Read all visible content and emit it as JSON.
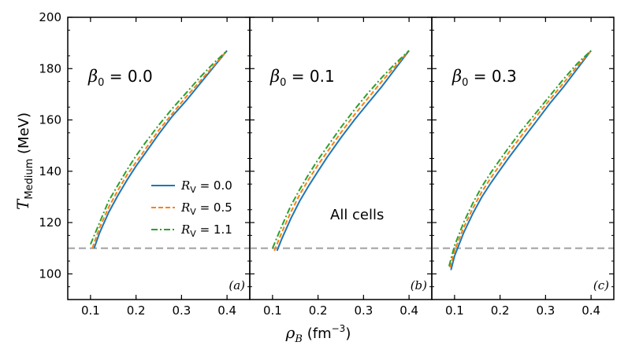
{
  "chart_data": {
    "type": "line",
    "ylabel_main": "T",
    "ylabel_sub": "Medium",
    "ylabel_unit": " (MeV)",
    "xlabel_main": "ρ",
    "xlabel_sub": "B",
    "xlabel_unit": " (fm",
    "xlabel_exp": "−3",
    "xlabel_close": ")",
    "ylim": [
      90,
      200
    ],
    "xlim": [
      0.05,
      0.45
    ],
    "yticks": [
      100,
      120,
      140,
      160,
      180,
      200
    ],
    "xticks": [
      0.1,
      0.2,
      0.3,
      0.4
    ],
    "xtick_labels": [
      "0.1",
      "0.2",
      "0.3",
      "0.4"
    ],
    "reference_line": {
      "y": 110,
      "color": "#aaaaaa"
    },
    "legend": {
      "label_prefix": "R",
      "label_sub": "V",
      "entries": [
        {
          "value": " = 0.0",
          "color": "#1f77b4",
          "dash": "solid"
        },
        {
          "value": " = 0.5",
          "color": "#ff7f0e",
          "dash": "dashed"
        },
        {
          "value": " = 1.1",
          "color": "#2ca02c",
          "dash": "dashdot"
        }
      ]
    },
    "annotation": "All cells",
    "panels": [
      {
        "beta_symbol": "β",
        "beta_sub": "0",
        "beta_value": " = 0.0",
        "panel_label": "(a)",
        "series": [
          {
            "name": "R_V = 0.0",
            "color": "#1f77b4",
            "dash": "solid",
            "x": [
              0.108,
              0.12,
              0.14,
              0.16,
              0.18,
              0.2,
              0.22,
              0.25,
              0.28,
              0.31,
              0.34,
              0.37,
              0.4
            ],
            "y": [
              110,
              116,
              124,
              130.5,
              136.5,
              142,
              147,
              154.5,
              161.5,
              167.5,
              174,
              180.5,
              187
            ]
          },
          {
            "name": "R_V = 0.5",
            "color": "#ff7f0e",
            "dash": "dashed",
            "x": [
              0.104,
              0.12,
              0.14,
              0.16,
              0.18,
              0.2,
              0.22,
              0.25,
              0.28,
              0.31,
              0.34,
              0.37,
              0.4
            ],
            "y": [
              110,
              118,
              126,
              132.5,
              138.5,
              143.5,
              148.5,
              156,
              162.5,
              169,
              175,
              181,
              187
            ]
          },
          {
            "name": "R_V = 1.1",
            "color": "#2ca02c",
            "dash": "dashdot",
            "x": [
              0.1,
              0.12,
              0.14,
              0.16,
              0.18,
              0.2,
              0.22,
              0.25,
              0.28,
              0.31,
              0.34,
              0.37,
              0.4
            ],
            "y": [
              111.5,
              120,
              128.5,
              134.5,
              140.5,
              146,
              151,
              158,
              164.5,
              170.5,
              176.5,
              182,
              187
            ]
          }
        ]
      },
      {
        "beta_symbol": "β",
        "beta_sub": "0",
        "beta_value": " = 0.1",
        "panel_label": "(b)",
        "series": [
          {
            "name": "R_V = 0.0",
            "color": "#1f77b4",
            "dash": "solid",
            "x": [
              0.11,
              0.12,
              0.14,
              0.16,
              0.18,
              0.2,
              0.22,
              0.25,
              0.28,
              0.31,
              0.34,
              0.37,
              0.4
            ],
            "y": [
              109,
              113.5,
              121.5,
              128.5,
              134.5,
              140,
              145.5,
              153,
              160,
              166.5,
              173,
              180,
              187
            ]
          },
          {
            "name": "R_V = 0.5",
            "color": "#ff7f0e",
            "dash": "dashed",
            "x": [
              0.104,
              0.12,
              0.14,
              0.16,
              0.18,
              0.2,
              0.22,
              0.25,
              0.28,
              0.31,
              0.34,
              0.37,
              0.4
            ],
            "y": [
              109,
              116,
              124,
              131,
              137,
              142.5,
              147.5,
              155,
              162,
              168.5,
              175,
              181,
              187
            ]
          },
          {
            "name": "R_V = 1.1",
            "color": "#2ca02c",
            "dash": "dashdot",
            "x": [
              0.1,
              0.12,
              0.14,
              0.16,
              0.18,
              0.2,
              0.22,
              0.25,
              0.28,
              0.31,
              0.34,
              0.37,
              0.4
            ],
            "y": [
              110,
              118.5,
              126.5,
              133,
              139,
              144.5,
              149.5,
              157,
              164,
              170.5,
              176.5,
              182,
              187
            ]
          }
        ]
      },
      {
        "beta_symbol": "β",
        "beta_sub": "0",
        "beta_value": " = 0.3",
        "panel_label": "(c)",
        "series": [
          {
            "name": "R_V = 0.0",
            "color": "#1f77b4",
            "dash": "solid",
            "x": [
              0.092,
              0.1,
              0.12,
              0.14,
              0.16,
              0.18,
              0.2,
              0.22,
              0.25,
              0.28,
              0.31,
              0.34,
              0.37,
              0.4
            ],
            "y": [
              101.5,
              107,
              116,
              123.5,
              130,
              135.5,
              140.5,
              145.5,
              152.5,
              159.5,
              166.5,
              173,
              180,
              187
            ]
          },
          {
            "name": "R_V = 0.5",
            "color": "#ff7f0e",
            "dash": "dashed",
            "x": [
              0.09,
              0.1,
              0.12,
              0.14,
              0.16,
              0.18,
              0.2,
              0.22,
              0.25,
              0.28,
              0.31,
              0.34,
              0.37,
              0.4
            ],
            "y": [
              102.5,
              109,
              118,
              125.5,
              132,
              137.5,
              142.5,
              147.5,
              154.5,
              161.5,
              168,
              174.5,
              181,
              187
            ]
          },
          {
            "name": "R_V = 1.1",
            "color": "#2ca02c",
            "dash": "dashdot",
            "x": [
              0.088,
              0.1,
              0.12,
              0.14,
              0.16,
              0.18,
              0.2,
              0.22,
              0.25,
              0.28,
              0.31,
              0.34,
              0.37,
              0.4
            ],
            "y": [
              103,
              111,
              120,
              127.5,
              134,
              139.5,
              144.5,
              149.5,
              156.5,
              163,
              169.5,
              176,
              182,
              187
            ]
          }
        ]
      }
    ]
  }
}
